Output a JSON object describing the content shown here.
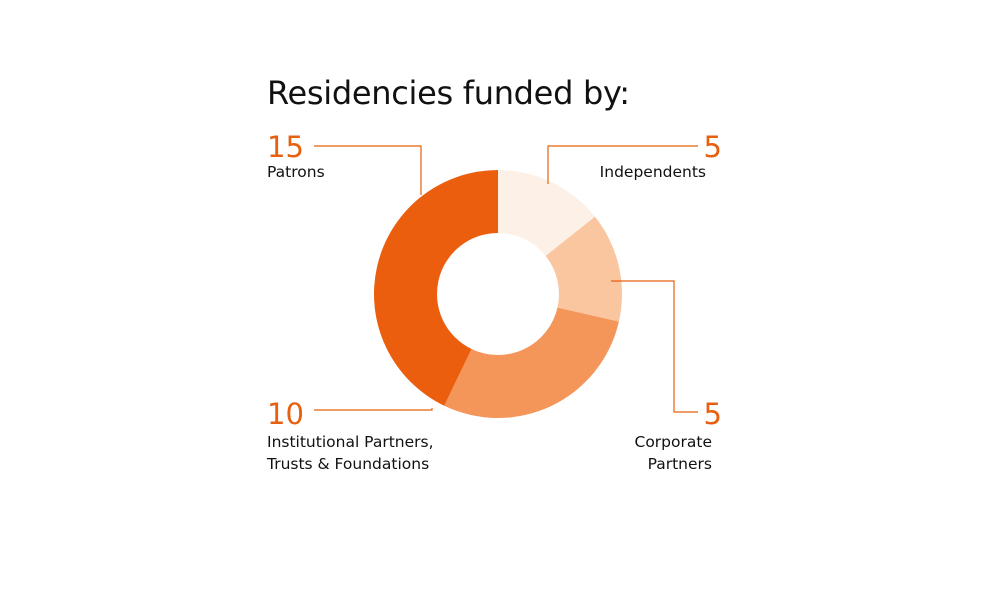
{
  "title": "Residencies funded by:",
  "colors": {
    "accent": "#e8600f",
    "slices": [
      "#fdf0e6",
      "#f9c6a0",
      "#f4955a",
      "#eb5e0e"
    ]
  },
  "chart_data": {
    "type": "pie",
    "donut": true,
    "title": "Residencies funded by:",
    "slices": [
      {
        "label": "Independents",
        "value": 5,
        "label_lines": [
          "Independents"
        ]
      },
      {
        "label": "Corporate Partners",
        "value": 5,
        "label_lines": [
          "Corporate",
          "Partners"
        ]
      },
      {
        "label": "Institutional Partners, Trusts & Foundations",
        "value": 10,
        "label_lines": [
          "Institutional Partners,",
          "Trusts & Foundations"
        ]
      },
      {
        "label": "Patrons",
        "value": 15,
        "label_lines": [
          "Patrons"
        ]
      }
    ]
  }
}
